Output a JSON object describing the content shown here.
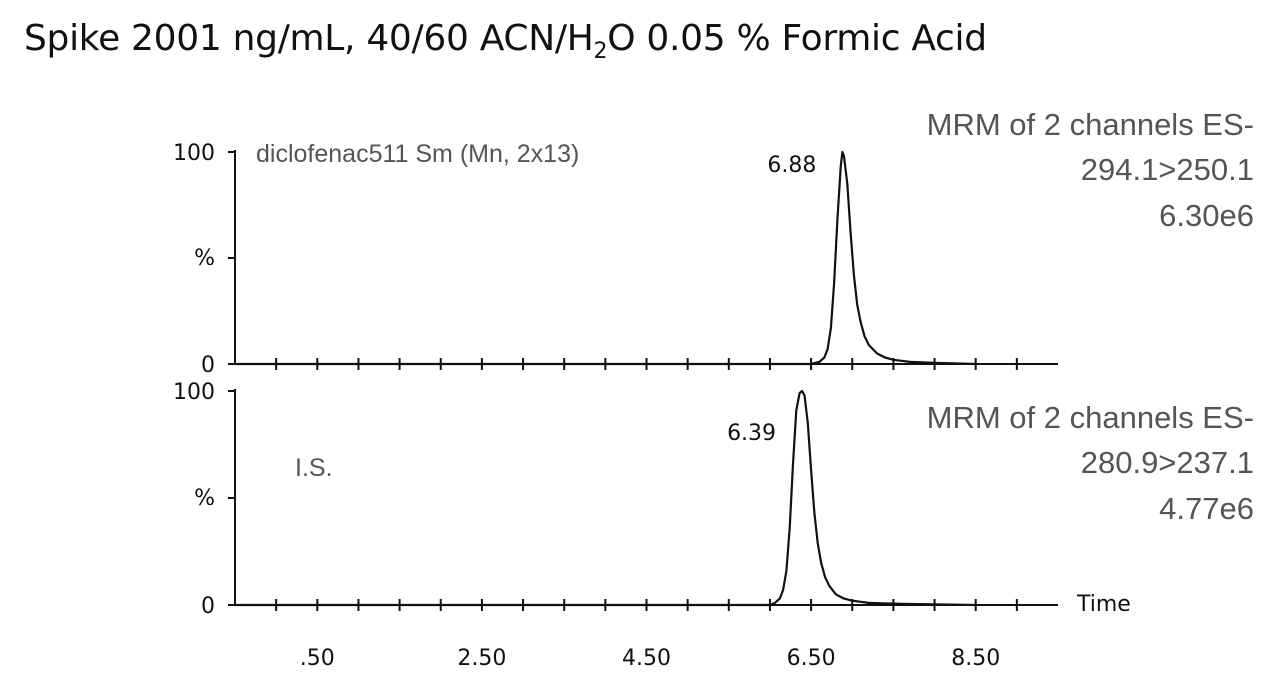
{
  "title": {
    "prefix": "Spike 2001 ng/mL, 40/60 ACN/H",
    "subscript": "2",
    "suffix": "O  0.05 % Formic Acid"
  },
  "chart_data": [
    {
      "type": "line",
      "panel": "top",
      "trace_label": "diclofenac511 Sm (Mn, 2x13)",
      "ylabel": "%",
      "y_ticks": [
        "0",
        "%",
        "100"
      ],
      "ylim": [
        0,
        100
      ],
      "xlim": [
        -0.5,
        9.5
      ],
      "info": [
        "MRM of 2 channels ES-",
        "294.1>250.1",
        "6.30e6"
      ],
      "peak": {
        "label": "6.88",
        "x": 6.88,
        "y": 100
      },
      "series": [
        {
          "x": [
            -0.5,
            5.0,
            6.0,
            6.5,
            6.6,
            6.66,
            6.7,
            6.74,
            6.78,
            6.82,
            6.86,
            6.88,
            6.9,
            6.94,
            6.98,
            7.02,
            7.06,
            7.1,
            7.15,
            7.2,
            7.3,
            7.4,
            7.5,
            7.7,
            8.0,
            8.5
          ],
          "y": [
            0,
            0,
            0,
            0,
            1,
            3,
            7,
            17,
            38,
            68,
            93,
            100,
            98,
            85,
            62,
            42,
            28,
            20,
            13,
            9,
            5,
            3,
            2,
            1,
            0.5,
            0
          ]
        }
      ]
    },
    {
      "type": "line",
      "panel": "bottom",
      "trace_label": "I.S.",
      "ylabel": "%",
      "y_ticks": [
        "0",
        "%",
        "100"
      ],
      "ylim": [
        0,
        100
      ],
      "xlim": [
        -0.5,
        9.5
      ],
      "xlabel": "Time",
      "x_ticks": [
        ".50",
        "2.50",
        "4.50",
        "6.50",
        "8.50"
      ],
      "info": [
        "MRM of 2 channels ES-",
        "280.9>237.1",
        "4.77e6"
      ],
      "peak": {
        "label": "6.39",
        "x": 6.39,
        "y": 100
      },
      "series": [
        {
          "x": [
            -0.5,
            5.5,
            6.0,
            6.06,
            6.12,
            6.16,
            6.2,
            6.24,
            6.28,
            6.32,
            6.36,
            6.39,
            6.42,
            6.46,
            6.5,
            6.54,
            6.58,
            6.62,
            6.67,
            6.72,
            6.8,
            6.9,
            7.0,
            7.2,
            7.6,
            8.0,
            8.5
          ],
          "y": [
            0,
            0,
            0,
            1,
            3,
            7,
            16,
            36,
            66,
            91,
            99,
            100,
            98,
            85,
            63,
            43,
            29,
            20,
            13,
            9,
            5,
            3,
            2,
            1,
            0.5,
            0.3,
            0
          ]
        }
      ]
    }
  ]
}
